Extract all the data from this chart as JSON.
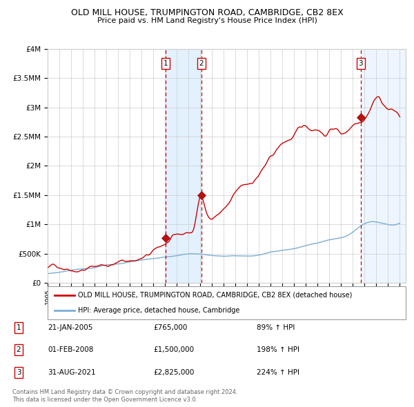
{
  "title": "OLD MILL HOUSE, TRUMPINGTON ROAD, CAMBRIDGE, CB2 8EX",
  "subtitle": "Price paid vs. HM Land Registry's House Price Index (HPI)",
  "legend_property": "OLD MILL HOUSE, TRUMPINGTON ROAD, CAMBRIDGE, CB2 8EX (detached house)",
  "legend_hpi": "HPI: Average price, detached house, Cambridge",
  "footer1": "Contains HM Land Registry data © Crown copyright and database right 2024.",
  "footer2": "This data is licensed under the Open Government Licence v3.0.",
  "transactions": [
    {
      "num": 1,
      "date": "21-JAN-2005",
      "price": 765000,
      "price_str": "£765,000",
      "pct": "89%",
      "direction": "↑"
    },
    {
      "num": 2,
      "date": "01-FEB-2008",
      "price": 1500000,
      "price_str": "£1,500,000",
      "pct": "198%",
      "direction": "↑"
    },
    {
      "num": 3,
      "date": "31-AUG-2021",
      "price": 2825000,
      "price_str": "£2,825,000",
      "pct": "224%",
      "direction": "↑"
    }
  ],
  "transaction_dates_decimal": [
    2005.055,
    2008.085,
    2021.664
  ],
  "transaction_prices": [
    765000,
    1500000,
    2825000
  ],
  "color_property": "#cc0000",
  "color_hpi": "#7aadd4",
  "color_shade": "#ddeeff",
  "ylim": [
    0,
    4000000
  ],
  "yticks": [
    0,
    500000,
    1000000,
    1500000,
    2000000,
    2500000,
    3000000,
    3500000,
    4000000
  ],
  "xlim_start": 1995.0,
  "xlim_end": 2025.5,
  "background_color": "#ffffff",
  "grid_color": "#cccccc",
  "hpi_anchors_x": [
    1995.0,
    1996.0,
    1997.0,
    1998.0,
    1999.0,
    2000.0,
    2001.0,
    2002.0,
    2003.0,
    2004.0,
    2005.0,
    2006.0,
    2007.0,
    2008.0,
    2009.0,
    2010.0,
    2011.0,
    2012.0,
    2013.0,
    2014.0,
    2015.0,
    2016.0,
    2017.0,
    2018.0,
    2019.0,
    2020.0,
    2021.0,
    2022.0,
    2023.0,
    2024.0,
    2025.0
  ],
  "hpi_anchors_y": [
    155000,
    175000,
    200000,
    225000,
    255000,
    295000,
    320000,
    355000,
    385000,
    415000,
    440000,
    470000,
    500000,
    505000,
    470000,
    455000,
    460000,
    455000,
    470000,
    510000,
    545000,
    570000,
    620000,
    660000,
    700000,
    720000,
    810000,
    950000,
    980000,
    940000,
    960000
  ],
  "prop_anchors_x": [
    1995.0,
    1996.0,
    1997.0,
    1998.0,
    1999.0,
    2000.0,
    2001.0,
    2002.0,
    2003.0,
    2004.0,
    2005.055,
    2005.5,
    2006.0,
    2006.5,
    2007.0,
    2007.5,
    2008.085,
    2008.5,
    2009.0,
    2009.5,
    2010.0,
    2010.5,
    2011.0,
    2011.5,
    2012.0,
    2012.5,
    2013.0,
    2013.5,
    2014.0,
    2014.5,
    2015.0,
    2015.5,
    2016.0,
    2016.5,
    2017.0,
    2017.5,
    2018.0,
    2018.5,
    2019.0,
    2019.5,
    2020.0,
    2020.5,
    2021.0,
    2021.664,
    2022.0,
    2022.5,
    2023.0,
    2023.5,
    2024.0,
    2024.5,
    2025.0
  ],
  "prop_anchors_y": [
    250000,
    285000,
    320000,
    360000,
    405000,
    450000,
    490000,
    530000,
    570000,
    630000,
    765000,
    800000,
    820000,
    840000,
    870000,
    980000,
    1500000,
    1280000,
    1150000,
    1220000,
    1300000,
    1380000,
    1500000,
    1580000,
    1620000,
    1700000,
    1820000,
    1950000,
    2050000,
    2180000,
    2280000,
    2350000,
    2400000,
    2480000,
    2520000,
    2500000,
    2550000,
    2480000,
    2520000,
    2580000,
    2480000,
    2550000,
    2680000,
    2825000,
    2900000,
    3100000,
    3280000,
    3200000,
    3100000,
    3050000,
    2950000
  ]
}
